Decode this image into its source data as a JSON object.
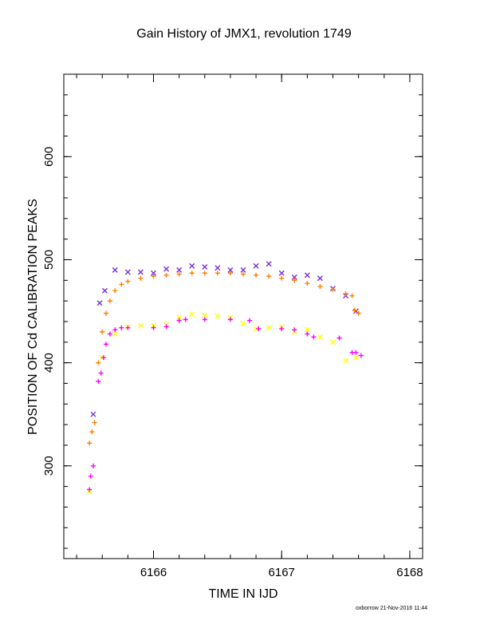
{
  "chart_data": {
    "type": "scatter",
    "title": "Gain History of JMX1, revolution 1749",
    "xlabel": "TIME IN IJD",
    "ylabel": "POSITION OF Cd CALIBRATION PEAKS",
    "xlim": [
      6165.3,
      6168.1
    ],
    "ylim": [
      210,
      680
    ],
    "x_ticks": [
      6166,
      6167,
      6168
    ],
    "y_ticks": [
      300,
      400,
      500,
      600
    ],
    "grid": false,
    "series": [
      {
        "color": "#7b2fd6",
        "marker": "x",
        "x": [
          6165.53,
          6165.58,
          6165.62,
          6165.7,
          6165.8,
          6165.9,
          6166.0,
          6166.1,
          6166.2,
          6166.3,
          6166.4,
          6166.5,
          6166.6,
          6166.7,
          6166.8,
          6166.9,
          6167.0,
          6167.1,
          6167.2,
          6167.3,
          6167.4,
          6167.5,
          6167.58
        ],
        "y": [
          350,
          458,
          470,
          490,
          488,
          488,
          487,
          491,
          490,
          494,
          493,
          492,
          490,
          490,
          494,
          496,
          487,
          483,
          485,
          482,
          472,
          465,
          450
        ]
      },
      {
        "color": "#ff7f00",
        "marker": "+",
        "x": [
          6165.5,
          6165.52,
          6165.54,
          6165.57,
          6165.6,
          6165.63,
          6165.66,
          6165.7,
          6165.75,
          6165.8,
          6165.9,
          6166.0,
          6166.1,
          6166.2,
          6166.3,
          6166.4,
          6166.5,
          6166.6,
          6166.7,
          6166.8,
          6166.9,
          6167.0,
          6167.1,
          6167.2,
          6167.3,
          6167.4,
          6167.5,
          6167.55,
          6167.57,
          6167.6
        ],
        "y": [
          322,
          333,
          342,
          400,
          430,
          448,
          460,
          470,
          476,
          479,
          482,
          484,
          485,
          486,
          487,
          487,
          487,
          487,
          486,
          485,
          484,
          482,
          480,
          477,
          474,
          471,
          467,
          465,
          451,
          448
        ]
      },
      {
        "color": "#ffff00",
        "marker": "x",
        "x": [
          6165.5,
          6165.6,
          6165.7,
          6165.8,
          6165.9,
          6166.0,
          6166.1,
          6166.2,
          6166.3,
          6166.4,
          6166.5,
          6166.6,
          6166.7,
          6166.8,
          6166.9,
          6167.0,
          6167.1,
          6167.2,
          6167.3,
          6167.4,
          6167.5,
          6167.58
        ],
        "y": [
          275,
          405,
          428,
          435,
          436,
          436,
          437,
          444,
          447,
          446,
          445,
          444,
          438,
          433,
          434,
          435,
          430,
          432,
          425,
          420,
          402,
          405
        ]
      },
      {
        "color": "#ff00ff",
        "marker": "+",
        "x": [
          6165.5,
          6165.51,
          6165.53,
          6165.57,
          6165.59,
          6165.61,
          6165.63,
          6165.66,
          6165.7,
          6165.75,
          6165.8,
          6166.0,
          6166.1,
          6166.2,
          6166.25,
          6166.4,
          6166.6,
          6166.75,
          6166.82,
          6167.0,
          6167.1,
          6167.2,
          6167.25,
          6167.45,
          6167.55,
          6167.58,
          6167.62
        ],
        "y": [
          277,
          290,
          300,
          382,
          390,
          405,
          418,
          428,
          432,
          434,
          434,
          434,
          435,
          441,
          442,
          442,
          442,
          441,
          433,
          433,
          432,
          428,
          425,
          424,
          410,
          410,
          407
        ]
      }
    ]
  },
  "footer": "oxborrow 21-Nov-2016 11:44"
}
